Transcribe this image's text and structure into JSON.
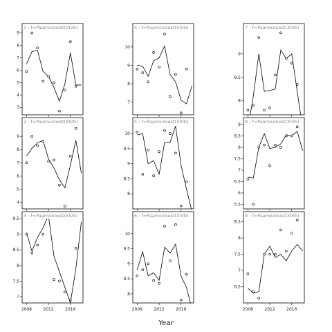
{
  "xlabel": "Year",
  "x_ticks": [
    2008,
    2012,
    2016
  ],
  "chart_data": [
    {
      "panel": 1,
      "strip": "1 : f=Paamiutoest(XIVb)",
      "type": "scatter+line",
      "ylim": [
        2.4,
        9.2
      ],
      "yticks": [
        3,
        4,
        5,
        6,
        7,
        8,
        9
      ],
      "points": [
        [
          2008,
          5.9
        ],
        [
          2009,
          9.0
        ],
        [
          2010,
          7.8
        ],
        [
          2011,
          5.1
        ],
        [
          2012,
          5.5
        ],
        [
          2013,
          5.0
        ],
        [
          2014,
          2.7
        ],
        [
          2015,
          4.4
        ],
        [
          2016,
          8.3
        ],
        [
          2017,
          4.7
        ]
      ],
      "line": [
        [
          2008,
          6.5
        ],
        [
          2009,
          7.5
        ],
        [
          2010,
          7.6
        ],
        [
          2011,
          5.9
        ],
        [
          2012,
          5.5
        ],
        [
          2013,
          4.6
        ],
        [
          2014,
          3.5
        ],
        [
          2015,
          4.9
        ],
        [
          2016,
          7.4
        ],
        [
          2017,
          4.8
        ],
        [
          2018,
          4.8
        ]
      ]
    },
    {
      "panel": 4,
      "strip": "4 : f=Paamiutoest(XIVb)",
      "type": "scatter+line",
      "ylim": [
        6.3,
        10.9
      ],
      "yticks": [
        7,
        8,
        9,
        10
      ],
      "points": [
        [
          2008,
          8.8
        ],
        [
          2009,
          8.6
        ],
        [
          2010,
          8.1
        ],
        [
          2011,
          9.7
        ],
        [
          2012,
          8.9
        ],
        [
          2013,
          10.7
        ],
        [
          2014,
          7.3
        ],
        [
          2015,
          8.5
        ],
        [
          2016,
          6.4
        ],
        [
          2017,
          8.8
        ]
      ],
      "line": [
        [
          2008,
          9.0
        ],
        [
          2009,
          8.95
        ],
        [
          2010,
          8.4
        ],
        [
          2011,
          9.25
        ],
        [
          2012,
          9.4
        ],
        [
          2013,
          10.05
        ],
        [
          2014,
          8.5
        ],
        [
          2015,
          8.1
        ],
        [
          2016,
          7.1
        ],
        [
          2017,
          6.9
        ],
        [
          2018,
          7.9
        ]
      ]
    },
    {
      "panel": 7,
      "strip": "7 : f=Paamiutoest(XIVb)",
      "type": "scatter+line",
      "ylim": [
        7.7,
        9.5
      ],
      "yticks": [
        8.0,
        8.5,
        9.0
      ],
      "points": [
        [
          2008,
          7.8
        ],
        [
          2009,
          7.9
        ],
        [
          2010,
          9.35
        ],
        [
          2011,
          7.8
        ],
        [
          2012,
          7.85
        ],
        [
          2013,
          8.55
        ],
        [
          2014,
          9.45
        ],
        [
          2015,
          8.9
        ],
        [
          2016,
          8.8
        ],
        [
          2017,
          8.35
        ]
      ],
      "line": [
        [
          2008,
          7.4
        ],
        [
          2009,
          8.1
        ],
        [
          2010,
          9.0
        ],
        [
          2011,
          8.2
        ],
        [
          2012,
          8.22
        ],
        [
          2013,
          8.25
        ],
        [
          2014,
          9.08
        ],
        [
          2015,
          8.9
        ],
        [
          2016,
          9.0
        ],
        [
          2017,
          8.2
        ],
        [
          2018,
          7.4
        ]
      ]
    },
    {
      "panel": 2,
      "strip": "2 : f=Paamiutoest(XIVb)",
      "type": "scatter+line",
      "ylim": [
        3.5,
        9.9
      ],
      "yticks": [
        4,
        5,
        6,
        7,
        8,
        9
      ],
      "points": [
        [
          2008,
          7.0
        ],
        [
          2009,
          9.0
        ],
        [
          2010,
          8.3
        ],
        [
          2011,
          8.6
        ],
        [
          2012,
          7.1
        ],
        [
          2013,
          7.2
        ],
        [
          2014,
          5.3
        ],
        [
          2015,
          3.7
        ],
        [
          2016,
          7.5
        ],
        [
          2017,
          9.6
        ]
      ],
      "line": [
        [
          2008,
          7.5
        ],
        [
          2009,
          8.1
        ],
        [
          2010,
          8.5
        ],
        [
          2011,
          8.7
        ],
        [
          2012,
          7.3
        ],
        [
          2013,
          6.6
        ],
        [
          2014,
          5.7
        ],
        [
          2015,
          5.1
        ],
        [
          2016,
          6.8
        ],
        [
          2017,
          8.7
        ],
        [
          2018,
          6.2
        ]
      ]
    },
    {
      "panel": 5,
      "strip": "5 : f=Paamiutoest(XIVb)",
      "type": "scatter+line",
      "ylim": [
        7.5,
        10.3
      ],
      "yticks": [
        8.0,
        8.5,
        9.0,
        9.5,
        10.0
      ],
      "points": [
        [
          2008,
          10.05
        ],
        [
          2009,
          8.65
        ],
        [
          2010,
          9.45
        ],
        [
          2011,
          8.6
        ],
        [
          2012,
          9.4
        ],
        [
          2013,
          10.1
        ],
        [
          2014,
          10.0
        ],
        [
          2015,
          9.35
        ],
        [
          2016,
          7.6
        ],
        [
          2017,
          8.4
        ]
      ],
      "line": [
        [
          2008,
          9.95
        ],
        [
          2009,
          10.0
        ],
        [
          2010,
          9.0
        ],
        [
          2011,
          9.1
        ],
        [
          2012,
          8.65
        ],
        [
          2013,
          9.7
        ],
        [
          2014,
          9.7
        ],
        [
          2015,
          10.25
        ],
        [
          2016,
          8.95
        ],
        [
          2017,
          8.15
        ],
        [
          2018,
          7.4
        ]
      ]
    },
    {
      "panel": 8,
      "strip": "8 : f=Paamiutoest(XIVb)",
      "type": "scatter+line",
      "ylim": [
        5.3,
        9.0
      ],
      "yticks": [
        5.5,
        6.0,
        6.5,
        7.0,
        7.5,
        8.0,
        8.5,
        9.0
      ],
      "points": [
        [
          2008,
          6.6
        ],
        [
          2009,
          5.5
        ],
        [
          2010,
          8.0
        ],
        [
          2011,
          8.1
        ],
        [
          2012,
          7.2
        ],
        [
          2013,
          8.1
        ],
        [
          2014,
          8.0
        ],
        [
          2015,
          8.5
        ],
        [
          2016,
          8.5
        ],
        [
          2017,
          8.9
        ]
      ],
      "line": [
        [
          2008,
          6.7
        ],
        [
          2009,
          6.65
        ],
        [
          2010,
          8.0
        ],
        [
          2011,
          8.6
        ],
        [
          2012,
          7.95
        ],
        [
          2013,
          8.0
        ],
        [
          2014,
          8.15
        ],
        [
          2015,
          8.55
        ],
        [
          2016,
          8.5
        ],
        [
          2017,
          8.7
        ],
        [
          2018,
          7.85
        ]
      ]
    },
    {
      "panel": 3,
      "strip": "3 : f=Paamiutoest(XIVb)",
      "type": "scatter+line",
      "ylim": [
        6.8,
        9.5
      ],
      "yticks": [
        7.0,
        7.5,
        8.0,
        8.5,
        9.0,
        9.5
      ],
      "points": [
        [
          2008,
          9.0
        ],
        [
          2009,
          8.4
        ],
        [
          2010,
          8.65
        ],
        [
          2011,
          9.0
        ],
        [
          2012,
          9.55
        ],
        [
          2013,
          7.55
        ],
        [
          2014,
          7.5
        ],
        [
          2015,
          7.15
        ],
        [
          2016,
          6.9
        ],
        [
          2017,
          8.55
        ]
      ],
      "line": [
        [
          2008,
          9.05
        ],
        [
          2009,
          8.45
        ],
        [
          2010,
          8.9
        ],
        [
          2011,
          9.2
        ],
        [
          2012,
          9.6
        ],
        [
          2013,
          8.3
        ],
        [
          2014,
          7.8
        ],
        [
          2015,
          7.3
        ],
        [
          2016,
          6.8
        ],
        [
          2017,
          7.9
        ],
        [
          2018,
          9.4
        ]
      ]
    },
    {
      "panel": 6,
      "strip": "6 : f=Paamiutoest(XIVb)",
      "type": "scatter+line",
      "ylim": [
        7.7,
        10.5
      ],
      "yticks": [
        8.0,
        8.5,
        9.0,
        9.5,
        10.0
      ],
      "points": [
        [
          2008,
          8.6
        ],
        [
          2009,
          8.8
        ],
        [
          2010,
          9.0
        ],
        [
          2011,
          8.45
        ],
        [
          2012,
          8.35
        ],
        [
          2013,
          10.25
        ],
        [
          2014,
          9.1
        ],
        [
          2015,
          10.3
        ],
        [
          2016,
          7.8
        ],
        [
          2017,
          8.65
        ]
      ],
      "line": [
        [
          2008,
          8.8
        ],
        [
          2009,
          9.4
        ],
        [
          2010,
          8.6
        ],
        [
          2011,
          8.7
        ],
        [
          2012,
          8.45
        ],
        [
          2013,
          9.55
        ],
        [
          2014,
          9.35
        ],
        [
          2015,
          9.65
        ],
        [
          2016,
          8.6
        ],
        [
          2017,
          8.2
        ],
        [
          2018,
          7.5
        ]
      ]
    },
    {
      "panel": 9,
      "strip": "9 : f=Paamiutoest(XIVb)",
      "type": "scatter+line",
      "ylim": [
        6.0,
        8.6
      ],
      "yticks": [
        6.5,
        7.0,
        7.5,
        8.0,
        8.5
      ],
      "points": [
        [
          2008,
          6.9
        ],
        [
          2009,
          6.35
        ],
        [
          2010,
          6.15
        ],
        [
          2011,
          7.5
        ],
        [
          2012,
          7.5
        ],
        [
          2013,
          7.5
        ],
        [
          2014,
          8.25
        ],
        [
          2015,
          7.6
        ],
        [
          2016,
          8.15
        ],
        [
          2017,
          8.55
        ]
      ],
      "line": [
        [
          2008,
          6.45
        ],
        [
          2009,
          6.3
        ],
        [
          2010,
          6.35
        ],
        [
          2011,
          7.5
        ],
        [
          2012,
          7.75
        ],
        [
          2013,
          7.4
        ],
        [
          2014,
          7.5
        ],
        [
          2015,
          7.3
        ],
        [
          2016,
          7.6
        ],
        [
          2017,
          7.8
        ],
        [
          2018,
          7.6
        ]
      ]
    }
  ]
}
